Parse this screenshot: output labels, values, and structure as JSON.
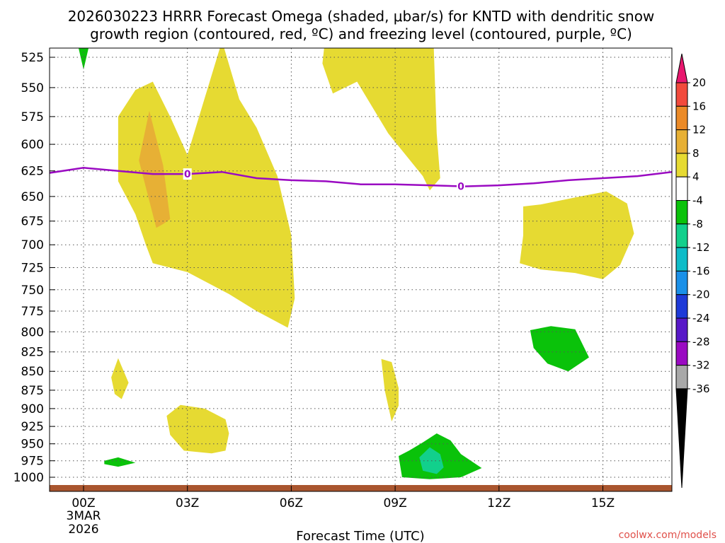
{
  "chart_data": {
    "type": "heatmap",
    "title_line1": "2026030223 HRRR Forecast Omega (shaded, μbar/s) for KNTD with dendritic snow",
    "title_line2": "growth region (contoured, red, ºC) and freezing level (contoured, purple, ºC)",
    "xlabel": "Forecast Time (UTC)",
    "credit": "coolwx.com/models",
    "x_range_hours": [
      -1.0,
      17.0
    ],
    "x_ticks": [
      {
        "hour": 0,
        "label": "00Z"
      },
      {
        "hour": 3,
        "label": "03Z"
      },
      {
        "hour": 6,
        "label": "06Z"
      },
      {
        "hour": 9,
        "label": "09Z"
      },
      {
        "hour": 12,
        "label": "12Z"
      },
      {
        "hour": 15,
        "label": "15Z"
      }
    ],
    "x_date_line1": "3MAR",
    "x_date_line2": "2026",
    "y_levels_hpa": [
      525,
      550,
      575,
      600,
      625,
      650,
      675,
      700,
      725,
      750,
      775,
      800,
      825,
      850,
      875,
      900,
      925,
      950,
      975,
      1000
    ],
    "colorbar": {
      "labels": [
        "20",
        "16",
        "12",
        "8",
        "4",
        "-4",
        "-8",
        "-12",
        "-16",
        "-20",
        "-24",
        "-28",
        "-32",
        "-36"
      ],
      "colors": [
        "#e8176e",
        "#f24a3c",
        "#eb8a27",
        "#e7b035",
        "#e6da32",
        "#ffffff",
        "#0ac20a",
        "#12d08c",
        "#0ebcc8",
        "#1a90e8",
        "#1e3ad8",
        "#5818c8",
        "#9a0ac2",
        "#a8a8a8",
        "#000000"
      ]
    },
    "fill_colors": {
      "omega_4_8": "#e6da32",
      "omega_8_12": "#e7b035",
      "omega_neg4_neg8": "#0ac20a",
      "omega_neg8_neg12": "#12d08c",
      "dgz": "#e0452a",
      "freezing": "#9a0ac2",
      "terrain": "#a9552e"
    },
    "freezing_level": {
      "label": "0",
      "points": [
        [
          -1.0,
          627
        ],
        [
          0.0,
          622
        ],
        [
          1.0,
          625
        ],
        [
          2.0,
          628
        ],
        [
          3.0,
          628
        ],
        [
          4.0,
          626
        ],
        [
          5.0,
          632
        ],
        [
          6.0,
          634
        ],
        [
          7.0,
          635
        ],
        [
          8.0,
          638
        ],
        [
          9.0,
          638
        ],
        [
          10.0,
          639
        ],
        [
          11.0,
          640
        ],
        [
          12.0,
          639
        ],
        [
          13.0,
          637
        ],
        [
          14.0,
          634
        ],
        [
          15.0,
          632
        ],
        [
          16.0,
          630
        ],
        [
          17.0,
          626
        ]
      ],
      "label_hours": [
        3.0,
        10.9
      ]
    },
    "dgz_contour": [
      [
        0.0,
        514
      ],
      [
        2.0,
        515
      ],
      [
        4.0,
        514.5
      ],
      [
        6.0,
        513.5
      ],
      [
        7.0,
        516.5
      ],
      [
        8.0,
        515.5
      ],
      [
        9.0,
        514.5
      ]
    ],
    "terrain_top_hpa": 1012,
    "regions": [
      {
        "name": "omega-pos-top",
        "level": "omega_4_8",
        "points": [
          [
            7.0,
            505
          ],
          [
            10.1,
            505
          ],
          [
            10.2,
            590
          ],
          [
            10.3,
            632
          ],
          [
            10.0,
            644
          ],
          [
            9.8,
            630
          ],
          [
            8.8,
            590
          ],
          [
            7.9,
            545
          ],
          [
            7.2,
            555
          ],
          [
            6.9,
            530
          ]
        ]
      },
      {
        "name": "omega-pos-upper-left",
        "level": "omega_4_8",
        "points": [
          [
            1.0,
            575
          ],
          [
            1.5,
            552
          ],
          [
            2.0,
            545
          ],
          [
            2.5,
            575
          ],
          [
            3.0,
            610
          ],
          [
            4.0,
            512
          ],
          [
            4.5,
            560
          ],
          [
            5.0,
            585
          ],
          [
            5.6,
            630
          ],
          [
            6.0,
            690
          ],
          [
            6.1,
            760
          ],
          [
            5.9,
            795
          ],
          [
            5.0,
            775
          ],
          [
            4.2,
            755
          ],
          [
            3.0,
            730
          ],
          [
            2.0,
            720
          ],
          [
            1.8,
            700
          ],
          [
            1.5,
            668
          ],
          [
            1.0,
            635
          ]
        ]
      },
      {
        "name": "omega-pos-core",
        "level": "omega_8_12",
        "points": [
          [
            1.6,
            615
          ],
          [
            1.9,
            570
          ],
          [
            2.3,
            620
          ],
          [
            2.5,
            673
          ],
          [
            2.3,
            678
          ],
          [
            2.1,
            682
          ]
        ]
      },
      {
        "name": "omega-pos-right",
        "level": "omega_4_8",
        "points": [
          [
            12.7,
            660
          ],
          [
            13.2,
            658
          ],
          [
            14.2,
            651
          ],
          [
            15.1,
            645
          ],
          [
            15.7,
            657
          ],
          [
            15.9,
            688
          ],
          [
            15.5,
            722
          ],
          [
            15.0,
            738
          ],
          [
            14.2,
            731
          ],
          [
            13.2,
            727
          ],
          [
            12.6,
            720
          ],
          [
            12.7,
            690
          ]
        ]
      },
      {
        "name": "omega-pos-low-left",
        "level": "omega_4_8",
        "points": [
          [
            0.8,
            858
          ],
          [
            1.0,
            833
          ],
          [
            1.3,
            865
          ],
          [
            1.1,
            887
          ],
          [
            0.9,
            880
          ]
        ]
      },
      {
        "name": "omega-pos-mid",
        "level": "omega_4_8",
        "points": [
          [
            8.6,
            834
          ],
          [
            8.9,
            838
          ],
          [
            9.1,
            872
          ],
          [
            9.1,
            896
          ],
          [
            8.9,
            918
          ],
          [
            8.7,
            875
          ]
        ]
      },
      {
        "name": "omega-pos-bottom",
        "level": "omega_4_8",
        "points": [
          [
            2.4,
            910
          ],
          [
            2.8,
            895
          ],
          [
            3.5,
            900
          ],
          [
            4.1,
            915
          ],
          [
            4.2,
            935
          ],
          [
            4.1,
            960
          ],
          [
            3.7,
            964
          ],
          [
            2.9,
            960
          ],
          [
            2.5,
            937
          ]
        ]
      },
      {
        "name": "omega-neg-right",
        "level": "omega_neg4_neg8",
        "points": [
          [
            12.9,
            798
          ],
          [
            13.5,
            793
          ],
          [
            14.2,
            797
          ],
          [
            14.6,
            832
          ],
          [
            14.0,
            850
          ],
          [
            13.4,
            840
          ],
          [
            13.0,
            820
          ]
        ]
      },
      {
        "name": "omega-neg-bottom",
        "level": "omega_neg4_neg8",
        "points": [
          [
            9.1,
            968
          ],
          [
            9.4,
            960
          ],
          [
            9.8,
            948
          ],
          [
            10.2,
            935
          ],
          [
            10.6,
            945
          ],
          [
            10.9,
            965
          ],
          [
            11.5,
            986
          ],
          [
            10.9,
            1000
          ],
          [
            10.0,
            1003
          ],
          [
            9.2,
            1000
          ]
        ]
      },
      {
        "name": "omega-neg-core",
        "level": "omega_neg8_neg12",
        "points": [
          [
            9.7,
            970
          ],
          [
            10.0,
            955
          ],
          [
            10.3,
            965
          ],
          [
            10.4,
            985
          ],
          [
            10.2,
            995
          ],
          [
            9.8,
            990
          ]
        ]
      },
      {
        "name": "omega-neg-low-left",
        "level": "omega_neg4_neg8",
        "points": [
          [
            0.6,
            975
          ],
          [
            1.0,
            970
          ],
          [
            1.5,
            978
          ],
          [
            1.0,
            984
          ],
          [
            0.6,
            980
          ]
        ]
      },
      {
        "name": "omega-neg-top",
        "level": "omega_neg4_neg8",
        "points": [
          [
            -0.2,
            511
          ],
          [
            0.2,
            511
          ],
          [
            0.0,
            535
          ]
        ]
      }
    ]
  }
}
